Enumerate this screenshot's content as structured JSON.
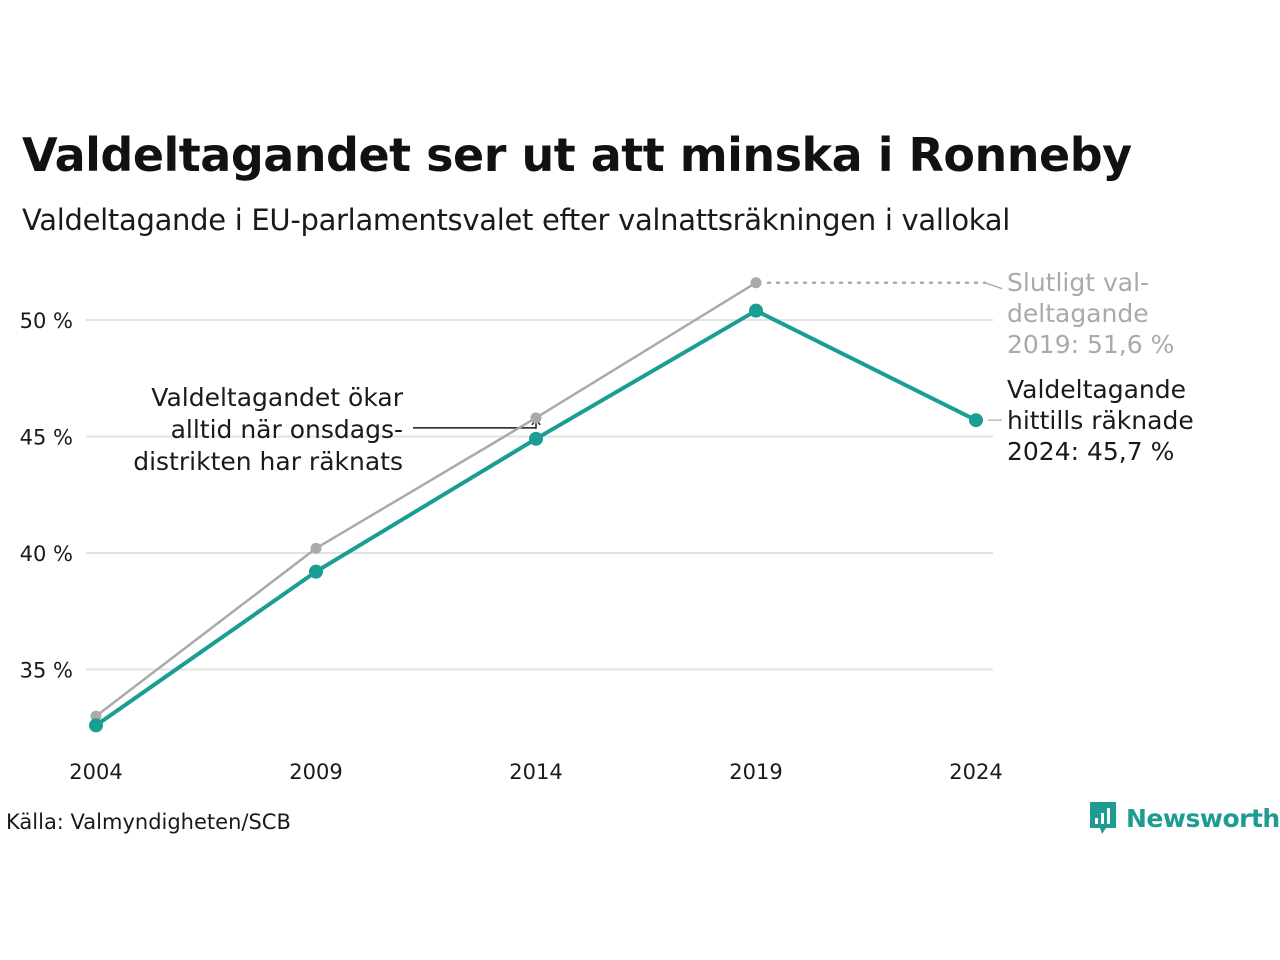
{
  "title": "Valdeltagandet ser ut att minska i Ronneby",
  "subtitle": "Valdeltagande i EU-parlamentsvalet efter valnattsräkningen i vallokal",
  "source": "Källa: Valmyndigheten/SCB",
  "brand": {
    "name": "Newsworthy",
    "icon": "newsworthy-logo-icon",
    "color": "#1f9c91"
  },
  "chart_data": {
    "type": "line",
    "x": [
      2004,
      2009,
      2014,
      2019,
      2024
    ],
    "x_tick_labels": [
      "2004",
      "2009",
      "2014",
      "2019",
      "2024"
    ],
    "y_ticks": [
      35,
      40,
      45,
      50
    ],
    "y_tick_labels": [
      "35 %",
      "40 %",
      "45 %",
      "50 %"
    ],
    "ylim": [
      31.5,
      53
    ],
    "grid": true,
    "series": [
      {
        "color": "#aaaaaa",
        "values": [
          33.0,
          40.2,
          45.8,
          51.6,
          null
        ]
      },
      {
        "color": "#1a9e93",
        "values": [
          32.6,
          39.2,
          44.9,
          50.4,
          45.7
        ]
      }
    ],
    "annotations": {
      "final_turnout": {
        "lines": [
          "Slutligt val-",
          "deltagande",
          "2019: 51,6 %"
        ],
        "color": "#aaaaaa"
      },
      "current_turnout": {
        "lines": [
          "Valdeltagande",
          "hittills räknade",
          "2024: 45,7 %"
        ],
        "color": "#1a1a1a"
      },
      "wednesday_note": {
        "lines": [
          "Valdeltagandet ökar",
          "alltid när onsdags-",
          "distrikten har räknats"
        ],
        "color": "#1a1a1a"
      }
    }
  }
}
